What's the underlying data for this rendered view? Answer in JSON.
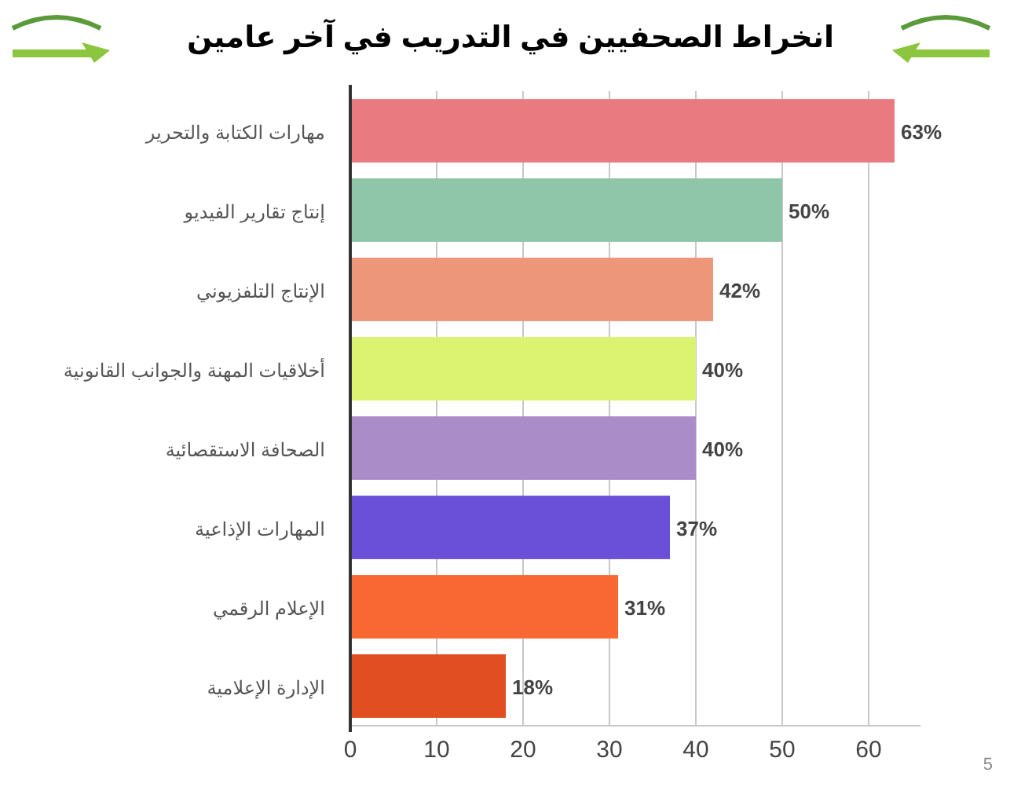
{
  "chart_data": {
    "type": "bar",
    "orientation": "horizontal",
    "title": "انخراط الصحفيين في التدريب في آخر عامين",
    "categories": [
      "مهارات الكتابة والتحرير",
      "إنتاج تقارير الفيديو",
      "الإنتاج التلفزيوني",
      "أخلاقيات المهنة والجوانب القانونية",
      "الصحافة الاستقصائية",
      "المهارات الإذاعية",
      "الإعلام الرقمي",
      "الإدارة الإعلامية"
    ],
    "values": [
      63,
      50,
      42,
      40,
      40,
      37,
      31,
      18
    ],
    "colors": [
      "#e97b80",
      "#8fc5a8",
      "#ed9679",
      "#dcf271",
      "#aa8cc8",
      "#6a4fd8",
      "#f96832",
      "#e04e22"
    ],
    "value_labels": [
      "63%",
      "50%",
      "42%",
      "40%",
      "40%",
      "37%",
      "31%",
      "18%"
    ],
    "xlim": [
      0,
      66
    ],
    "xticks": [
      0,
      10,
      20,
      30,
      40,
      50,
      60
    ],
    "grid": "x",
    "annotations": [
      "5"
    ]
  }
}
